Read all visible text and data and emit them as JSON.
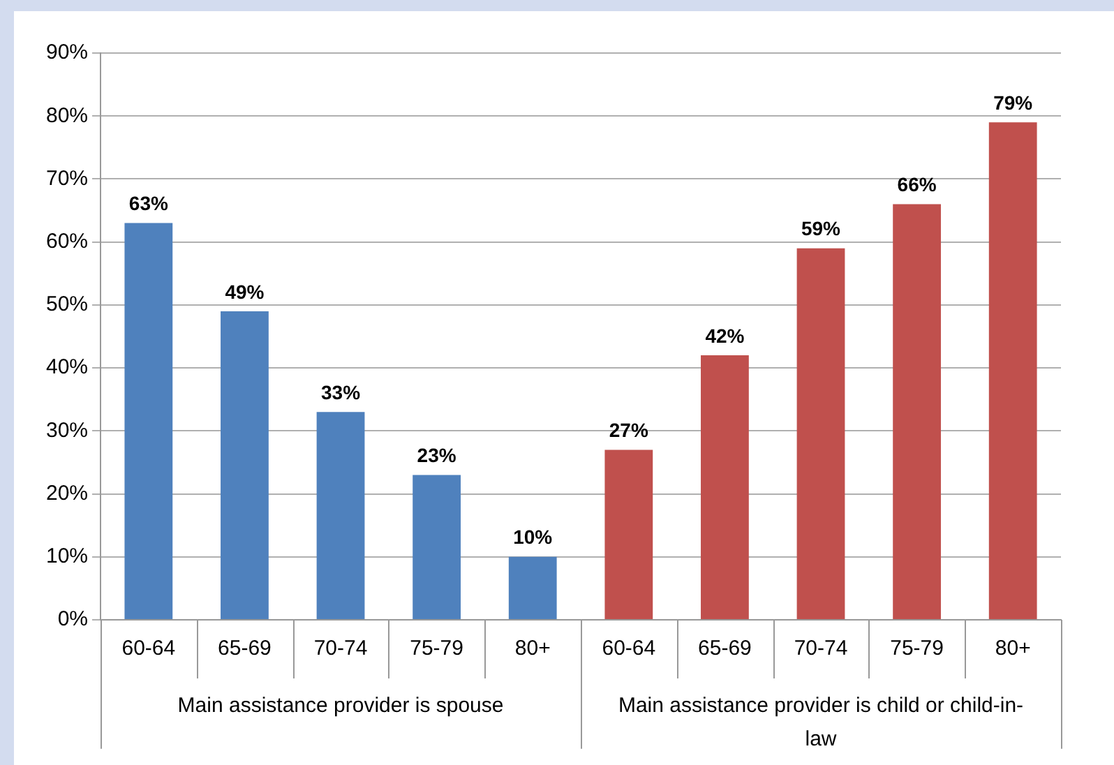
{
  "chart_data": {
    "type": "bar",
    "categories": [
      "60-64",
      "65-69",
      "70-74",
      "75-79",
      "80+",
      "60-64",
      "65-69",
      "70-74",
      "75-79",
      "80+"
    ],
    "series": [
      {
        "color": "#4f81bd",
        "values": [
          63,
          49,
          33,
          23,
          10,
          null,
          null,
          null,
          null,
          null
        ],
        "value_labels": [
          "63%",
          "49%",
          "33%",
          "23%",
          "10%",
          null,
          null,
          null,
          null,
          null
        ]
      },
      {
        "color": "#c0504d",
        "values": [
          null,
          null,
          null,
          null,
          null,
          27,
          42,
          59,
          66,
          79
        ],
        "value_labels": [
          null,
          null,
          null,
          null,
          null,
          "27%",
          "42%",
          "59%",
          "66%",
          "79%"
        ]
      }
    ],
    "annotations": [
      "Main assistance provider is spouse",
      "Main assistance provider is child or child-in-law"
    ],
    "ylim": [
      0,
      90
    ],
    "yticks": [
      {
        "value": 0,
        "label": "0%"
      },
      {
        "value": 10,
        "label": "10%"
      },
      {
        "value": 20,
        "label": "20%"
      },
      {
        "value": 30,
        "label": "30%"
      },
      {
        "value": 40,
        "label": "40%"
      },
      {
        "value": 50,
        "label": "50%"
      },
      {
        "value": 60,
        "label": "60%"
      },
      {
        "value": 70,
        "label": "70%"
      },
      {
        "value": 80,
        "label": "80%"
      },
      {
        "value": 90,
        "label": "90%"
      }
    ],
    "grid": "y",
    "legend": false
  }
}
